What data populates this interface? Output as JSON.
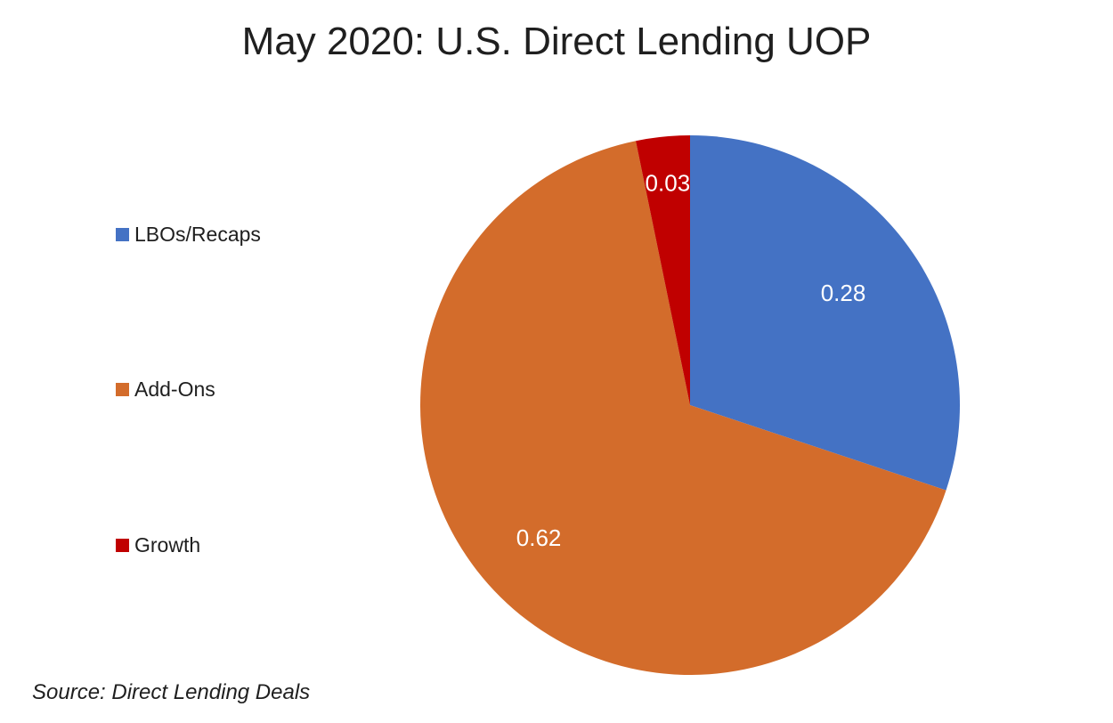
{
  "chart_data": {
    "type": "pie",
    "title": "May 2020: U.S. Direct Lending UOP",
    "categories": [
      "LBOs/Recaps",
      "Add-Ons",
      "Growth"
    ],
    "values": [
      0.28,
      0.62,
      0.03
    ],
    "labels": [
      "0.28",
      "0.62",
      "0.03"
    ],
    "colors": [
      "#4472C4",
      "#D36C2B",
      "#C00000"
    ],
    "legend_position": "left",
    "start_angle": "12 o'clock",
    "direction": "clockwise"
  },
  "source": "Source: Direct Lending Deals"
}
